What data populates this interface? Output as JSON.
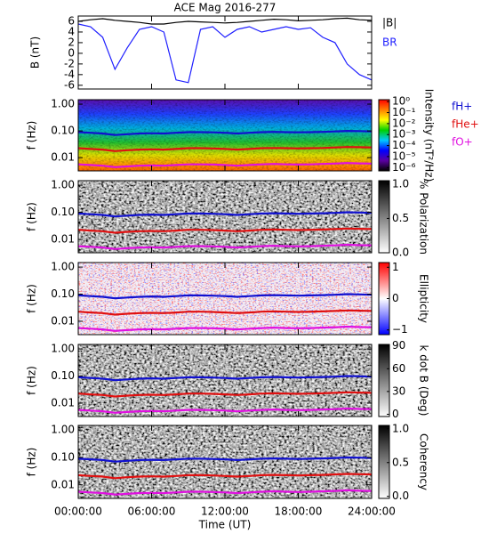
{
  "chart_data": [
    {
      "type": "line",
      "title": "ACE Mag 2016-277",
      "ylabel": "B (nT)",
      "xlim": [
        0,
        24
      ],
      "ylim": [
        -6.7,
        7
      ],
      "yticks": [
        6,
        4,
        2,
        0,
        -2,
        -4,
        -6
      ],
      "x": [
        0,
        1,
        2,
        3,
        4,
        5,
        6,
        7,
        8,
        9,
        10,
        11,
        12,
        13,
        14,
        15,
        16,
        17,
        18,
        19,
        20,
        21,
        22,
        23,
        24
      ],
      "series": [
        {
          "name": "|B|",
          "color": "#000000",
          "values": [
            6,
            6.3,
            6.5,
            6.2,
            6,
            5.8,
            5.5,
            5.5,
            5.8,
            6,
            5.9,
            5.8,
            5.7,
            5.8,
            6,
            6.2,
            6.4,
            6.3,
            6.1,
            6.2,
            6.3,
            6.5,
            6.6,
            6.3,
            6.2
          ]
        },
        {
          "name": "BR",
          "color": "#1f1fff",
          "values": [
            5.5,
            5,
            3,
            -3,
            1,
            4.5,
            5,
            4,
            -5,
            -5.5,
            4.5,
            5,
            3,
            4.5,
            5,
            4,
            4.5,
            5,
            4.5,
            4.8,
            3,
            2,
            -2,
            -4,
            -5
          ]
        }
      ]
    },
    {
      "type": "spectrogram",
      "ylabel": "f (Hz)",
      "xlim": [
        0,
        24
      ],
      "ylim": [
        0.0032,
        1.47
      ],
      "yticks": [
        {
          "value": 1,
          "label": "1.00"
        },
        {
          "value": 0.1,
          "label": "0.10"
        },
        {
          "value": 0.01,
          "label": "0.01"
        }
      ],
      "colorbar": {
        "label": "Intensity (nT²/Hz)",
        "log": true,
        "clim": [
          5e-07,
          1.5
        ],
        "colors": [
          "#000000",
          "#5a00a0",
          "#0000ff",
          "#00c8ff",
          "#00d000",
          "#ffff00",
          "#ff8000",
          "#ff0000"
        ],
        "cticks": [
          {
            "value": 1,
            "label": "10⁰"
          },
          {
            "value": 0.1,
            "label": "10⁻¹"
          },
          {
            "value": 0.01,
            "label": "10⁻²"
          },
          {
            "value": 0.001,
            "label": "10⁻³"
          },
          {
            "value": 0.0001,
            "label": "10⁻⁴"
          },
          {
            "value": 1e-05,
            "label": "10⁻⁵"
          },
          {
            "value": 1e-06,
            "label": "10⁻⁶"
          }
        ]
      },
      "x": [
        0,
        1,
        2,
        3,
        4,
        5,
        6,
        7,
        8,
        9,
        10,
        11,
        12,
        13,
        14,
        15,
        16,
        17,
        18,
        19,
        20,
        21,
        22,
        23,
        24
      ],
      "series": [
        {
          "name": "fH+",
          "color": "#1010d0",
          "values": [
            0.09,
            0.085,
            0.08,
            0.07,
            0.075,
            0.08,
            0.082,
            0.08,
            0.085,
            0.09,
            0.09,
            0.088,
            0.085,
            0.08,
            0.085,
            0.09,
            0.092,
            0.09,
            0.088,
            0.09,
            0.092,
            0.095,
            0.1,
            0.098,
            0.095
          ]
        },
        {
          "name": "fHe+",
          "color": "#e01010",
          "values": [
            0.0225,
            0.021,
            0.02,
            0.0175,
            0.019,
            0.02,
            0.0205,
            0.02,
            0.021,
            0.0225,
            0.0225,
            0.022,
            0.021,
            0.02,
            0.021,
            0.0225,
            0.023,
            0.0225,
            0.022,
            0.0225,
            0.023,
            0.024,
            0.025,
            0.0245,
            0.024
          ]
        },
        {
          "name": "fO+",
          "color": "#e010e0",
          "values": [
            0.0056,
            0.0053,
            0.005,
            0.0044,
            0.0047,
            0.005,
            0.0051,
            0.005,
            0.0053,
            0.0056,
            0.0056,
            0.0055,
            0.0053,
            0.005,
            0.0053,
            0.0056,
            0.0058,
            0.0056,
            0.0055,
            0.0056,
            0.0058,
            0.006,
            0.0063,
            0.0061,
            0.006
          ]
        }
      ]
    },
    {
      "type": "spectrogram",
      "ylabel": "f (Hz)",
      "xlim": [
        0,
        24
      ],
      "ylim": [
        0.0032,
        1.47
      ],
      "yticks": [
        {
          "value": 1,
          "label": "1.00"
        },
        {
          "value": 0.1,
          "label": "0.10"
        },
        {
          "value": 0.01,
          "label": "0.01"
        }
      ],
      "colorbar": {
        "label": "% Polarization",
        "log": false,
        "clim": [
          0,
          1.05
        ],
        "colors": [
          "#ffffff",
          "#000000"
        ],
        "cticks": [
          {
            "value": 1,
            "label": "1.0"
          },
          {
            "value": 0.5,
            "label": "0.5"
          },
          {
            "value": 0,
            "label": "0.0"
          }
        ]
      },
      "x": [
        0,
        1,
        2,
        3,
        4,
        5,
        6,
        7,
        8,
        9,
        10,
        11,
        12,
        13,
        14,
        15,
        16,
        17,
        18,
        19,
        20,
        21,
        22,
        23,
        24
      ],
      "series": [
        {
          "color": "#1010d0",
          "values": [
            0.09,
            0.085,
            0.08,
            0.07,
            0.075,
            0.08,
            0.082,
            0.08,
            0.085,
            0.09,
            0.09,
            0.088,
            0.085,
            0.08,
            0.085,
            0.09,
            0.092,
            0.09,
            0.088,
            0.09,
            0.092,
            0.095,
            0.1,
            0.098,
            0.095
          ]
        },
        {
          "color": "#e01010",
          "values": [
            0.0225,
            0.021,
            0.02,
            0.0175,
            0.019,
            0.02,
            0.0205,
            0.02,
            0.021,
            0.0225,
            0.0225,
            0.022,
            0.021,
            0.02,
            0.021,
            0.0225,
            0.023,
            0.0225,
            0.022,
            0.0225,
            0.023,
            0.024,
            0.025,
            0.0245,
            0.024
          ]
        },
        {
          "color": "#e010e0",
          "values": [
            0.0056,
            0.0053,
            0.005,
            0.0044,
            0.0047,
            0.005,
            0.0051,
            0.005,
            0.0053,
            0.0056,
            0.0056,
            0.0055,
            0.0053,
            0.005,
            0.0053,
            0.0056,
            0.0058,
            0.0056,
            0.0055,
            0.0056,
            0.0058,
            0.006,
            0.0063,
            0.0061,
            0.006
          ]
        }
      ]
    },
    {
      "type": "spectrogram",
      "ylabel": "f (Hz)",
      "xlim": [
        0,
        24
      ],
      "ylim": [
        0.0032,
        1.47
      ],
      "yticks": [
        {
          "value": 1,
          "label": "1.00"
        },
        {
          "value": 0.1,
          "label": "0.10"
        },
        {
          "value": 0.01,
          "label": "0.01"
        }
      ],
      "colorbar": {
        "label": "Ellipticity",
        "log": false,
        "clim": [
          -1.15,
          1.15
        ],
        "colors": [
          "#0000ff",
          "#ffffff",
          "#ff0000"
        ],
        "cticks": [
          {
            "value": 1,
            "label": "1"
          },
          {
            "value": 0,
            "label": "0"
          },
          {
            "value": -1,
            "label": "−1"
          }
        ]
      },
      "x": [
        0,
        1,
        2,
        3,
        4,
        5,
        6,
        7,
        8,
        9,
        10,
        11,
        12,
        13,
        14,
        15,
        16,
        17,
        18,
        19,
        20,
        21,
        22,
        23,
        24
      ],
      "series": [
        {
          "color": "#1010d0",
          "values": [
            0.09,
            0.085,
            0.08,
            0.07,
            0.075,
            0.08,
            0.082,
            0.08,
            0.085,
            0.09,
            0.09,
            0.088,
            0.085,
            0.08,
            0.085,
            0.09,
            0.092,
            0.09,
            0.088,
            0.09,
            0.092,
            0.095,
            0.1,
            0.098,
            0.095
          ]
        },
        {
          "color": "#e01010",
          "values": [
            0.0225,
            0.021,
            0.02,
            0.0175,
            0.019,
            0.02,
            0.0205,
            0.02,
            0.021,
            0.0225,
            0.0225,
            0.022,
            0.021,
            0.02,
            0.021,
            0.0225,
            0.023,
            0.0225,
            0.022,
            0.0225,
            0.023,
            0.024,
            0.025,
            0.0245,
            0.024
          ]
        },
        {
          "color": "#e010e0",
          "values": [
            0.0056,
            0.0053,
            0.005,
            0.0044,
            0.0047,
            0.005,
            0.0051,
            0.005,
            0.0053,
            0.0056,
            0.0056,
            0.0055,
            0.0053,
            0.005,
            0.0053,
            0.0056,
            0.0058,
            0.0056,
            0.0055,
            0.0056,
            0.0058,
            0.006,
            0.0063,
            0.0061,
            0.006
          ]
        }
      ]
    },
    {
      "type": "spectrogram",
      "ylabel": "f (Hz)",
      "xlim": [
        0,
        24
      ],
      "ylim": [
        0.0032,
        1.47
      ],
      "yticks": [
        {
          "value": 1,
          "label": "1.00"
        },
        {
          "value": 0.1,
          "label": "0.10"
        },
        {
          "value": 0.01,
          "label": "0.01"
        }
      ],
      "colorbar": {
        "label": "k dot B (Deg)",
        "log": false,
        "clim": [
          -3,
          92
        ],
        "colors": [
          "#ffffff",
          "#000000"
        ],
        "cticks": [
          90,
          60,
          30,
          0
        ]
      },
      "x": [
        0,
        1,
        2,
        3,
        4,
        5,
        6,
        7,
        8,
        9,
        10,
        11,
        12,
        13,
        14,
        15,
        16,
        17,
        18,
        19,
        20,
        21,
        22,
        23,
        24
      ],
      "series": [
        {
          "color": "#1010d0",
          "values": [
            0.09,
            0.085,
            0.08,
            0.07,
            0.075,
            0.08,
            0.082,
            0.08,
            0.085,
            0.09,
            0.09,
            0.088,
            0.085,
            0.08,
            0.085,
            0.09,
            0.092,
            0.09,
            0.088,
            0.09,
            0.092,
            0.095,
            0.1,
            0.098,
            0.095
          ]
        },
        {
          "color": "#e01010",
          "values": [
            0.0225,
            0.021,
            0.02,
            0.0175,
            0.019,
            0.02,
            0.0205,
            0.02,
            0.021,
            0.0225,
            0.0225,
            0.022,
            0.021,
            0.02,
            0.021,
            0.0225,
            0.023,
            0.0225,
            0.022,
            0.0225,
            0.023,
            0.024,
            0.025,
            0.0245,
            0.024
          ]
        },
        {
          "color": "#e010e0",
          "values": [
            0.0056,
            0.0053,
            0.005,
            0.0044,
            0.0047,
            0.005,
            0.0051,
            0.005,
            0.0053,
            0.0056,
            0.0056,
            0.0055,
            0.0053,
            0.005,
            0.0053,
            0.0056,
            0.0058,
            0.0056,
            0.0055,
            0.0056,
            0.0058,
            0.006,
            0.0063,
            0.0061,
            0.006
          ]
        }
      ]
    },
    {
      "type": "spectrogram",
      "ylabel": "f (Hz)",
      "xlim": [
        0,
        24
      ],
      "ylim": [
        0.0032,
        1.47
      ],
      "yticks": [
        {
          "value": 1,
          "label": "1.00"
        },
        {
          "value": 0.1,
          "label": "0.10"
        },
        {
          "value": 0.01,
          "label": "0.01"
        }
      ],
      "colorbar": {
        "label": "Coherency",
        "log": false,
        "clim": [
          -0.03,
          1.05
        ],
        "colors": [
          "#ffffff",
          "#000000"
        ],
        "cticks": [
          {
            "value": 1,
            "label": "1.0"
          },
          {
            "value": 0.5,
            "label": "0.5"
          },
          {
            "value": 0,
            "label": "0.0"
          }
        ]
      },
      "xlabel": "Time (UT)",
      "xticks": [
        {
          "value": 0,
          "label": "00:00:00"
        },
        {
          "value": 6,
          "label": "06:00:00"
        },
        {
          "value": 12,
          "label": "12:00:00"
        },
        {
          "value": 18,
          "label": "18:00:00"
        },
        {
          "value": 24,
          "label": "24:00:00"
        }
      ],
      "x": [
        0,
        1,
        2,
        3,
        4,
        5,
        6,
        7,
        8,
        9,
        10,
        11,
        12,
        13,
        14,
        15,
        16,
        17,
        18,
        19,
        20,
        21,
        22,
        23,
        24
      ],
      "series": [
        {
          "color": "#1010d0",
          "values": [
            0.09,
            0.085,
            0.08,
            0.07,
            0.075,
            0.08,
            0.082,
            0.08,
            0.085,
            0.09,
            0.09,
            0.088,
            0.085,
            0.08,
            0.085,
            0.09,
            0.092,
            0.09,
            0.088,
            0.09,
            0.092,
            0.095,
            0.1,
            0.098,
            0.095
          ]
        },
        {
          "color": "#e01010",
          "values": [
            0.0225,
            0.021,
            0.02,
            0.0175,
            0.019,
            0.02,
            0.0205,
            0.02,
            0.021,
            0.0225,
            0.0225,
            0.022,
            0.021,
            0.02,
            0.021,
            0.0225,
            0.023,
            0.0225,
            0.022,
            0.0225,
            0.023,
            0.024,
            0.025,
            0.0245,
            0.024
          ]
        },
        {
          "color": "#e010e0",
          "values": [
            0.0056,
            0.0053,
            0.005,
            0.0044,
            0.0047,
            0.005,
            0.0051,
            0.005,
            0.0053,
            0.0056,
            0.0056,
            0.0055,
            0.0053,
            0.005,
            0.0053,
            0.0056,
            0.0058,
            0.0056,
            0.0055,
            0.0056,
            0.0058,
            0.006,
            0.0063,
            0.0061,
            0.006
          ]
        }
      ]
    }
  ]
}
